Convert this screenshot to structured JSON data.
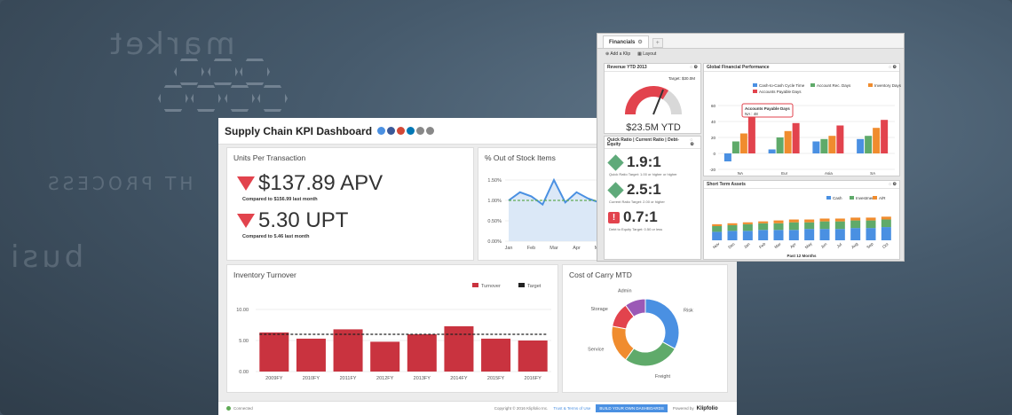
{
  "bg_text": {
    "market": "market",
    "process": "HT PROCESS",
    "busi": "busi"
  },
  "dashboard": {
    "title": "Supply Chain KPI Dashboard",
    "units": {
      "title": "Units Per Transaction",
      "apv": {
        "value": "$137.89 APV",
        "sub": "Compared to $156.99 last month"
      },
      "upt": {
        "value": "5.30 UPT",
        "sub": "Compared to 5.46 last month"
      }
    },
    "stock": {
      "title": "% Out of Stock Items",
      "yticks": [
        "1.50%",
        "1.00%",
        "0.50%",
        "0.00%"
      ],
      "xticks": [
        "Jan",
        "Feb",
        "Mar",
        "Apr",
        "May"
      ]
    },
    "inventory": {
      "title": "Inventory Turnover",
      "legend": {
        "turnover": "Turnover",
        "target": "Target"
      },
      "yticks": [
        "10.00",
        "5.00",
        "0.00"
      ]
    },
    "carry": {
      "title": "Cost of Carry MTD"
    },
    "footer": {
      "connected": "Connected",
      "copyright": "Copyright © 2016 Klipfolio Inc.",
      "terms": "Trust & Terms of Use",
      "cta": "BUILD YOUR OWN DASHBOARDS",
      "powered": "Powered by",
      "brand": "Klipfolio"
    }
  },
  "financials": {
    "tab": "Financials",
    "tab_close": "⚙",
    "add_tab": "+",
    "add_klip": "Add a Klip",
    "layout": "Layout",
    "revenue": {
      "title": "Revenue YTD 2013",
      "target": "Target: $30.0M",
      "value": "$23.5M YTD"
    },
    "ratios": {
      "title": "Quick Ratio | Current Ratio | Debt-Equity",
      "quick": {
        "value": "1.9:1",
        "sub": "Quick Ratio Target: 1.00 or higher or higher"
      },
      "current": {
        "value": "2.5:1",
        "sub": "Current Ratio Target: 2.00 or higher"
      },
      "debt": {
        "value": "0.7:1",
        "sub": "Debt to Equity Target: 0.50 or less"
      }
    },
    "gfp": {
      "title": "Global Financial Performance",
      "tooltip_title": "Accounts Payable Days",
      "tooltip_val": "NA : 48"
    },
    "sta": {
      "title": "Short Term Assets",
      "xlabel": "Past 12 Months"
    }
  },
  "chart_data": [
    {
      "type": "line",
      "title": "% Out of Stock Items",
      "x": [
        "Jan",
        "",
        "Feb",
        "",
        "Mar",
        "",
        "Apr",
        "",
        "May"
      ],
      "series": [
        {
          "values": [
            1.0,
            1.2,
            1.1,
            0.9,
            1.5,
            0.95,
            1.2,
            1.05,
            0.95
          ]
        }
      ],
      "target": 1.0,
      "ylim": [
        0,
        1.5
      ],
      "colors": {
        "line": "#4a90e2",
        "target": "#5faa55"
      }
    },
    {
      "type": "bar",
      "title": "Inventory Turnover",
      "categories": [
        "2009FY",
        "2010FY",
        "2011FY",
        "2012FY",
        "2013FY",
        "2014FY",
        "2015FY",
        "2016FY"
      ],
      "series": [
        {
          "name": "Turnover",
          "values": [
            6.3,
            5.3,
            6.8,
            4.8,
            6.0,
            7.3,
            5.3,
            5.0
          ]
        }
      ],
      "target": 6.0,
      "ylim": [
        0,
        10
      ],
      "colors": {
        "bar": "#c9333f",
        "target": "#222"
      }
    },
    {
      "type": "pie",
      "title": "Cost of Carry MTD",
      "categories": [
        "Risk",
        "Freight",
        "Service",
        "Storage",
        "Admin"
      ],
      "values": [
        33,
        27,
        18,
        12,
        10
      ],
      "colors": [
        "#4a90e2",
        "#5faa6a",
        "#f08c2e",
        "#e2434d",
        "#9b59b6"
      ]
    },
    {
      "type": "bar",
      "title": "Global Financial Performance",
      "categories": [
        "NA",
        "Eur",
        "Asia",
        "SA"
      ],
      "series": [
        {
          "name": "Cash-to-Cash Cycle Time",
          "values": [
            -10,
            5,
            15,
            18
          ]
        },
        {
          "name": "Account Rec. Days",
          "values": [
            15,
            20,
            18,
            22
          ]
        },
        {
          "name": "Inventory Days",
          "values": [
            25,
            28,
            22,
            32
          ]
        },
        {
          "name": "Accounts Payable Days",
          "values": [
            48,
            38,
            35,
            42
          ]
        }
      ],
      "ylim": [
        -20,
        60
      ],
      "colors": [
        "#4a90e2",
        "#5faa6a",
        "#f08c2e",
        "#e2434d"
      ]
    },
    {
      "type": "bar",
      "title": "Short Term Assets",
      "categories": [
        "Nov",
        "Dec",
        "Jan",
        "Feb",
        "Mar",
        "Apr",
        "May",
        "Jun",
        "Jul",
        "Aug",
        "Sep",
        "Oct"
      ],
      "series": [
        {
          "name": "Cash",
          "values": [
            9,
            10,
            10,
            11,
            11,
            11,
            12,
            12,
            12,
            13,
            13,
            14
          ]
        },
        {
          "name": "Investments",
          "values": [
            6,
            6,
            7,
            7,
            7,
            8,
            7,
            8,
            8,
            8,
            8,
            8
          ]
        },
        {
          "name": "A/R",
          "values": [
            2,
            2,
            2,
            2,
            3,
            3,
            3,
            3,
            3,
            3,
            3,
            3
          ]
        }
      ],
      "ylim": [
        0,
        30
      ],
      "colors": [
        "#4a90e2",
        "#5faa6a",
        "#f08c2e"
      ]
    }
  ]
}
